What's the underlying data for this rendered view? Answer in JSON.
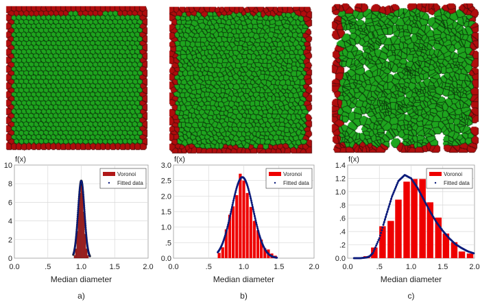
{
  "colors": {
    "cell_interior": "#1ea51e",
    "cell_boundary": "#b00d0d",
    "cell_edge": "#0b3d0b",
    "bar": "#ee0000",
    "fit": "#0a1a7a",
    "grid": "#d8d8d8"
  },
  "tessellations": [
    {
      "label": "a",
      "regularity": "hexagonal"
    },
    {
      "label": "b",
      "regularity": "perturbed"
    },
    {
      "label": "c",
      "regularity": "random"
    }
  ],
  "chart_data": [
    {
      "type": "bar",
      "panel_label": "a)",
      "ylabel": "f(x)",
      "xlabel": "Median diameter",
      "xlim": [
        0,
        2
      ],
      "ylim": [
        0,
        10
      ],
      "xticks": [
        "0.0",
        ".5",
        "1.0",
        "1.5",
        "2.0"
      ],
      "yticks": [
        "0",
        "2",
        "4",
        "6",
        "8",
        "10"
      ],
      "grid": true,
      "legend": "top-right",
      "legend_entries": [
        "Voronoi",
        "Fitted data"
      ],
      "bar_x": [
        0.9,
        0.92,
        0.94,
        0.96,
        0.98,
        1.0,
        1.02,
        1.04,
        1.06,
        1.08,
        1.1
      ],
      "bar_width": 0.02,
      "values": [
        0.3,
        1.0,
        2.9,
        5.3,
        7.0,
        8.3,
        7.2,
        5.0,
        2.6,
        1.0,
        0.3
      ],
      "fit": {
        "mean": 1.0,
        "sd": 0.048,
        "xrange": [
          0.88,
          1.13
        ]
      }
    },
    {
      "type": "bar",
      "panel_label": "b)",
      "ylabel": "f(x)",
      "xlabel": "Median diameter",
      "xlim": [
        0,
        2
      ],
      "ylim": [
        0,
        3
      ],
      "xticks": [
        "0.0",
        ".5",
        "1.0",
        "1.5",
        "2.0"
      ],
      "yticks": [
        "0.0",
        ".5",
        "1.0",
        "1.5",
        "2.0",
        "2.5",
        "3.0"
      ],
      "grid": true,
      "legend": "top-right",
      "legend_entries": [
        "Voronoi",
        "Fitted data"
      ],
      "bar_x": [
        0.65,
        0.7,
        0.75,
        0.8,
        0.85,
        0.9,
        0.95,
        1.0,
        1.05,
        1.1,
        1.15,
        1.2,
        1.25,
        1.3,
        1.35,
        1.4,
        1.45
      ],
      "bar_width": 0.05,
      "values": [
        0.17,
        0.35,
        0.93,
        1.4,
        1.67,
        2.03,
        2.72,
        2.5,
        2.1,
        1.65,
        1.2,
        0.9,
        0.6,
        0.32,
        0.28,
        0.15,
        0.08
      ],
      "fit": {
        "mean": 0.98,
        "sd": 0.153,
        "xrange": [
          0.63,
          1.47
        ]
      }
    },
    {
      "type": "bar",
      "panel_label": "c)",
      "ylabel": "f(x)",
      "xlabel": "Median diameter",
      "xlim": [
        0,
        2
      ],
      "ylim": [
        0,
        1.4
      ],
      "xticks": [
        "0.0",
        ".5",
        "1.0",
        "1.5",
        "2.0"
      ],
      "yticks": [
        "0.0",
        ".2",
        ".4",
        ".6",
        ".8",
        "1.0",
        "1.2",
        "1.4"
      ],
      "grid": true,
      "legend": "top-right",
      "legend_entries": [
        "Voronoi",
        "Fitted data"
      ],
      "bar_x": [
        0.3,
        0.42,
        0.55,
        0.68,
        0.8,
        0.93,
        1.05,
        1.18,
        1.3,
        1.43,
        1.55,
        1.68,
        1.8,
        1.93
      ],
      "bar_width": 0.125,
      "values": [
        0.03,
        0.16,
        0.48,
        0.56,
        0.88,
        1.15,
        1.19,
        1.19,
        0.84,
        0.61,
        0.37,
        0.24,
        0.1,
        0.07
      ],
      "fit_points": {
        "x": [
          0.1,
          0.2,
          0.3,
          0.35,
          0.4,
          0.5,
          0.6,
          0.7,
          0.8,
          0.9,
          1.0,
          1.1,
          1.2,
          1.3,
          1.4,
          1.5,
          1.6,
          1.7,
          1.8,
          1.9,
          2.0
        ],
        "y": [
          0.0,
          0.0,
          0.01,
          0.03,
          0.08,
          0.3,
          0.62,
          0.93,
          1.16,
          1.25,
          1.2,
          1.06,
          0.88,
          0.7,
          0.54,
          0.41,
          0.3,
          0.21,
          0.15,
          0.1,
          0.07
        ]
      }
    }
  ]
}
